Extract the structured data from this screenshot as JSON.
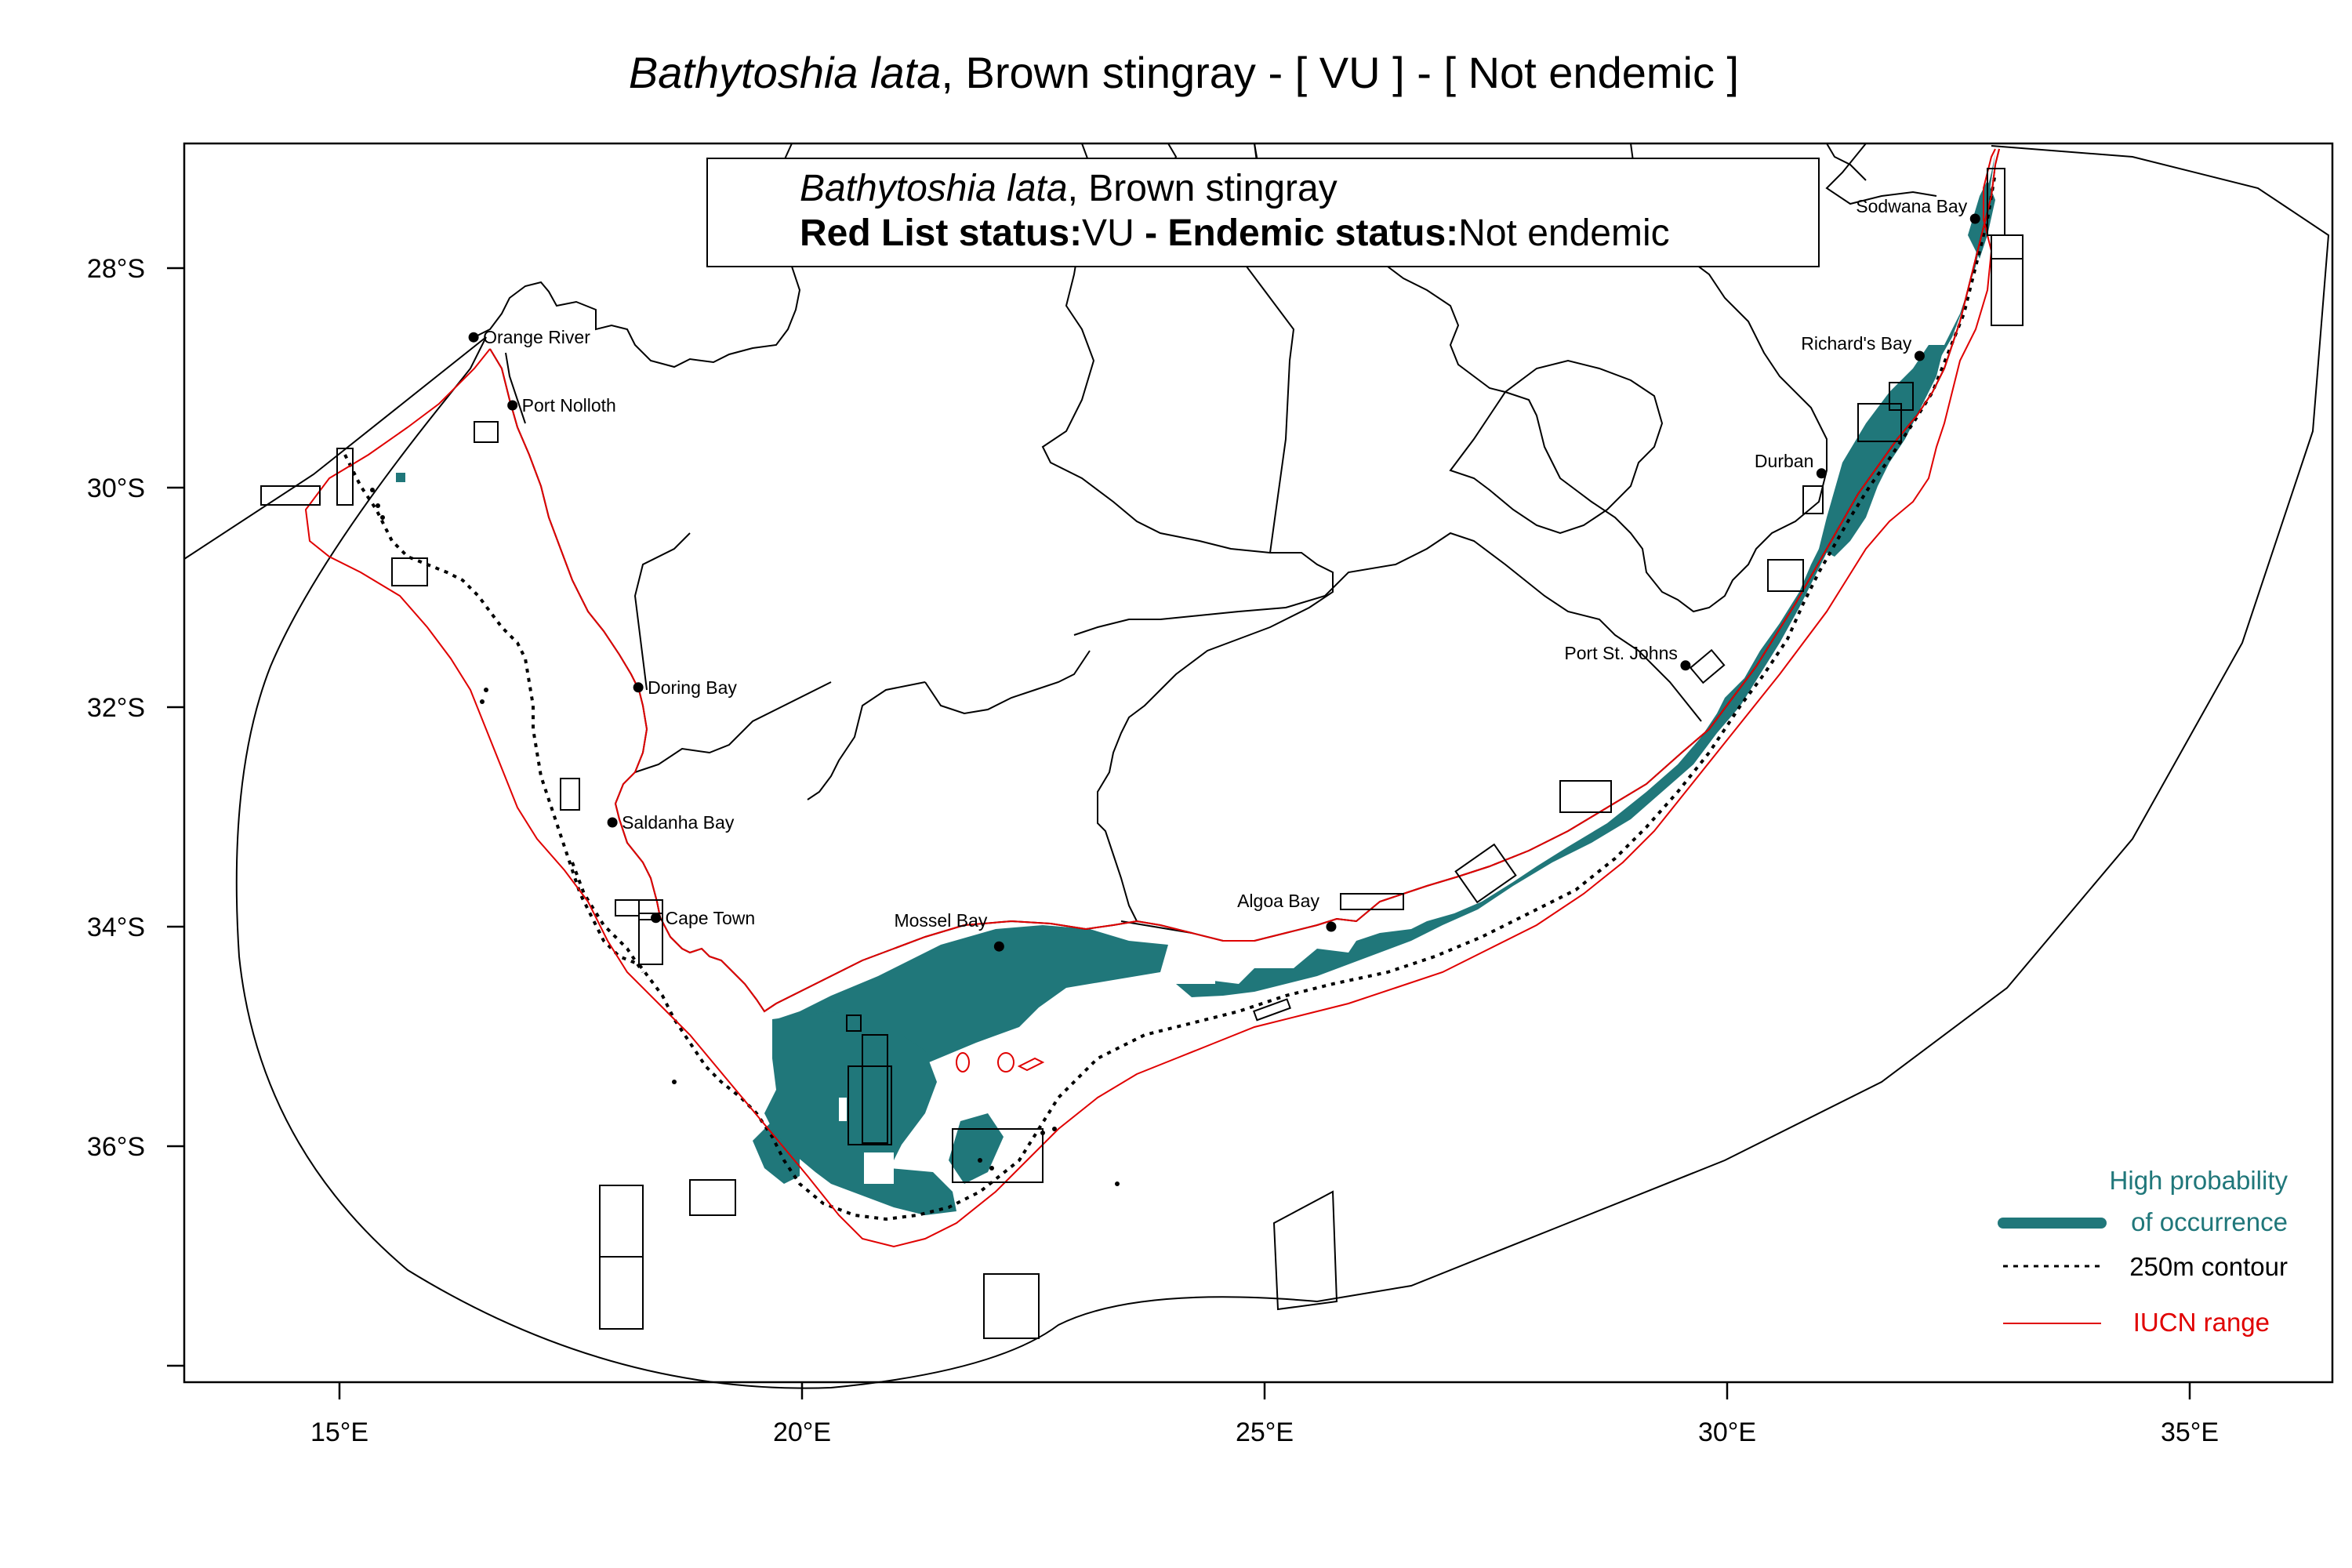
{
  "title": {
    "species": "Bathytoshia lata",
    "common": ", Brown stingray",
    "suffix": " - [ VU ] - [ Not endemic ]"
  },
  "info_box": {
    "species": "Bathytoshia lata",
    "common": ", Brown stingray",
    "redlist_label": "Red List status:",
    "redlist_value": "VU",
    "separator": " - ",
    "endemic_label": "Endemic status:",
    "endemic_value": "Not endemic"
  },
  "axes": {
    "lat_ticks": [
      "28°S",
      "30°S",
      "32°S",
      "34°S",
      "36°S"
    ],
    "lon_ticks": [
      "15°E",
      "20°E",
      "25°E",
      "30°E",
      "35°E"
    ]
  },
  "places": [
    {
      "name": "Orange River",
      "lon": 16.45,
      "lat": -28.63
    },
    {
      "name": "Port Nolloth",
      "lon": 16.87,
      "lat": -29.25
    },
    {
      "name": "Doring Bay",
      "lon": 18.23,
      "lat": -31.82
    },
    {
      "name": "Saldanha Bay",
      "lon": 17.95,
      "lat": -33.05
    },
    {
      "name": "Cape Town",
      "lon": 18.42,
      "lat": -33.92
    },
    {
      "name": "Mossel Bay",
      "lon": 22.13,
      "lat": -34.18
    },
    {
      "name": "Algoa Bay",
      "lon": 25.72,
      "lat": -34.0
    },
    {
      "name": "Port St. Johns",
      "lon": 29.55,
      "lat": -31.62
    },
    {
      "name": "Durban",
      "lon": 31.02,
      "lat": -29.87
    },
    {
      "name": "Richard's Bay",
      "lon": 32.08,
      "lat": -28.8
    },
    {
      "name": "Sodwana Bay",
      "lon": 32.68,
      "lat": -27.55
    }
  ],
  "legend": {
    "probability_line1": "High probability",
    "probability_line2": "of occurrence",
    "contour": "250m contour",
    "iucn": "IUCN range"
  },
  "colors": {
    "occurrence": "#20777a",
    "iucn": "#e00000",
    "land": "#000000",
    "contour": "#000000"
  }
}
